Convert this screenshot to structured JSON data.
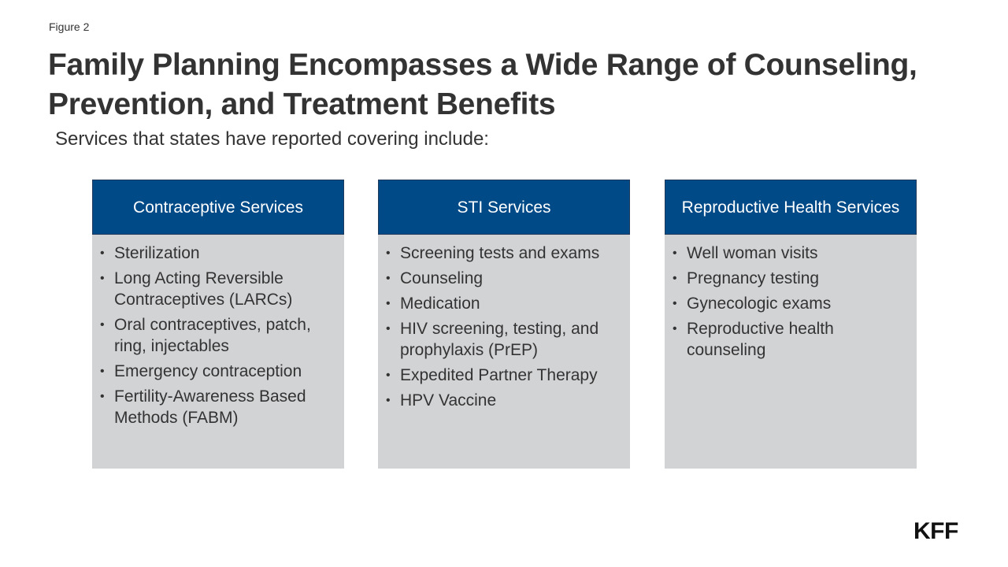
{
  "figure_label": "Figure 2",
  "title": "Family Planning Encompasses a Wide Range of Counseling, Prevention, and Treatment Benefits",
  "subtitle": "Services that states have reported covering include:",
  "colors": {
    "header_bg": "#004a87",
    "card_bg": "#d2d3d5",
    "text": "#333333"
  },
  "columns": [
    {
      "header": "Contraceptive Services",
      "items": [
        "Sterilization",
        "Long Acting Reversible Contraceptives (LARCs)",
        "Oral contraceptives, patch, ring, injectables",
        "Emergency contraception",
        "Fertility-Awareness Based Methods (FABM)"
      ]
    },
    {
      "header": "STI Services",
      "items": [
        "Screening tests and exams",
        "Counseling",
        "Medication",
        "HIV screening, testing, and prophylaxis (PrEP)",
        "Expedited Partner Therapy",
        "HPV Vaccine"
      ]
    },
    {
      "header": "Reproductive Health Services",
      "items": [
        "Well woman visits",
        "Pregnancy testing",
        "Gynecologic exams",
        "Reproductive health counseling"
      ]
    }
  ],
  "logo": "KFF"
}
